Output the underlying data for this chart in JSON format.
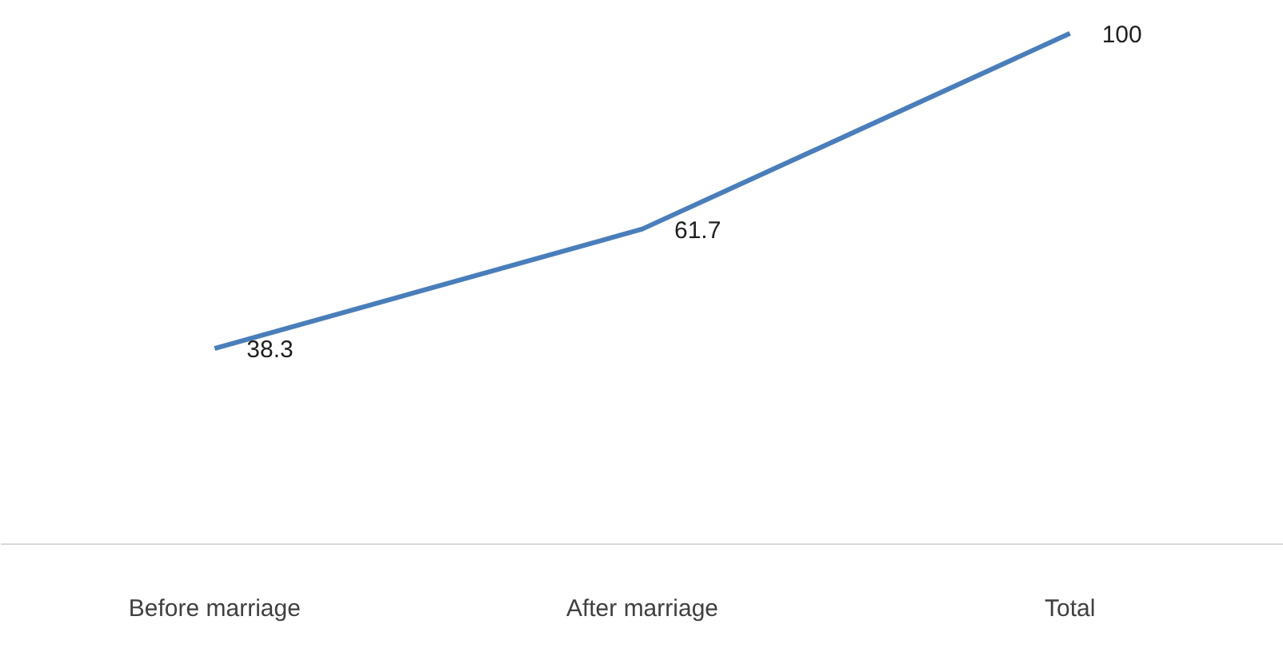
{
  "chart_data": {
    "type": "line",
    "categories": [
      "Before marriage",
      "After marriage",
      "Total"
    ],
    "series": [
      {
        "color": "#4a7ebb",
        "values": [
          38.3,
          61.7,
          100
        ]
      }
    ],
    "data_labels": true
  }
}
